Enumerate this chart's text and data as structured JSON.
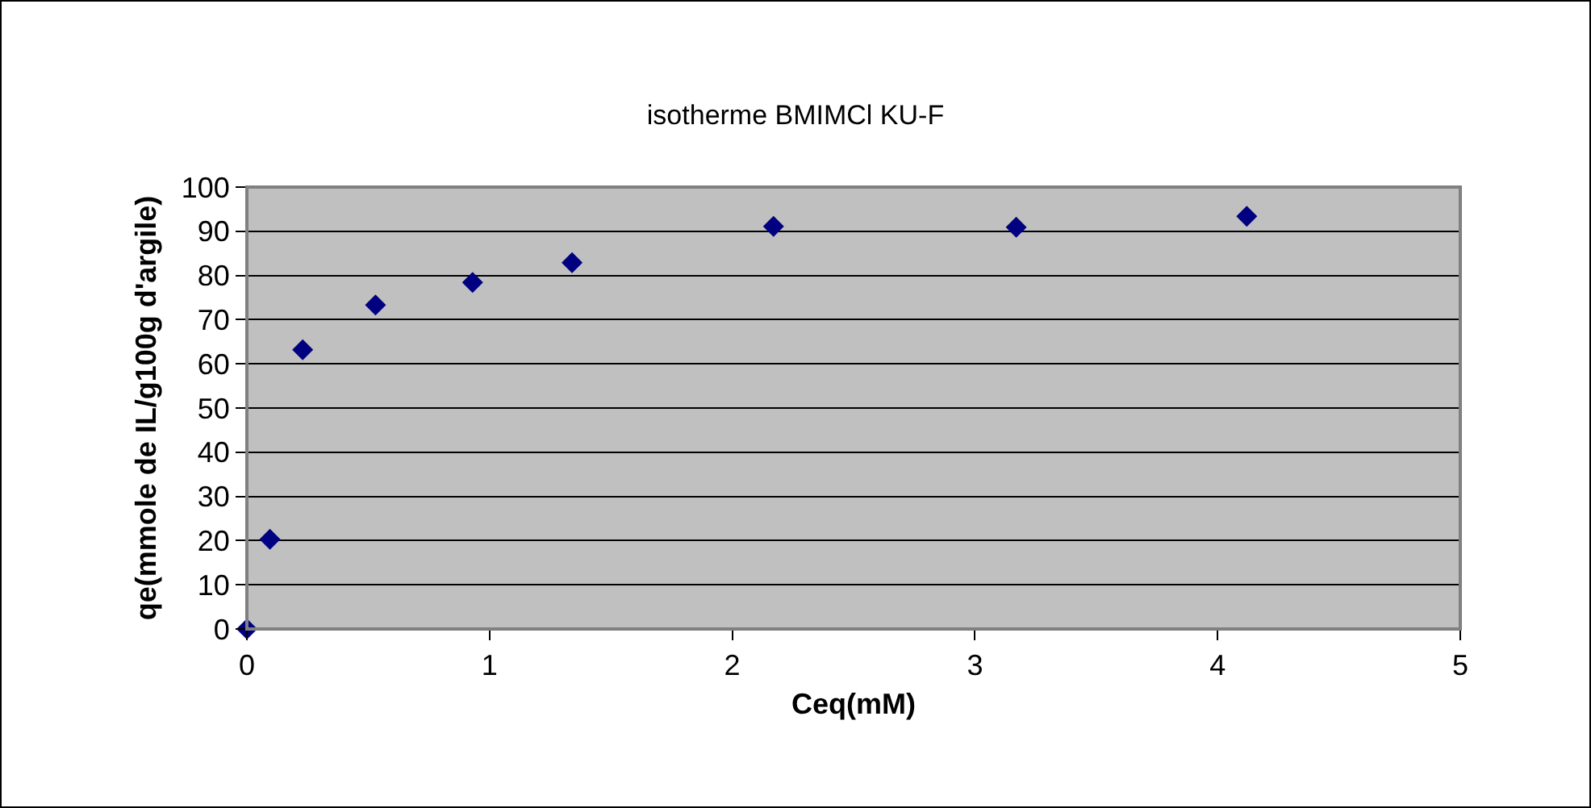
{
  "chart_data": {
    "type": "scatter",
    "title": "isotherme BMIMCl KU-F",
    "xlabel": "Ceq(mM)",
    "ylabel": "qe(mmole de IL/g100g d'argile)",
    "x": [
      0,
      0.095,
      0.23,
      0.53,
      0.93,
      1.34,
      2.17,
      3.17,
      4.12
    ],
    "series": [
      {
        "color": "#000080",
        "values": [
          0,
          20.3,
          63.2,
          73.3,
          78.4,
          82.9,
          91.1,
          90.9,
          93.4
        ]
      }
    ],
    "xlim": [
      0,
      5
    ],
    "xticks": [
      0,
      1,
      2,
      3,
      4,
      5
    ],
    "ylim": [
      0,
      100
    ],
    "yticks": [
      0,
      10,
      20,
      30,
      40,
      50,
      60,
      70,
      80,
      90,
      100
    ],
    "grid": "y",
    "marker": "diamond"
  }
}
